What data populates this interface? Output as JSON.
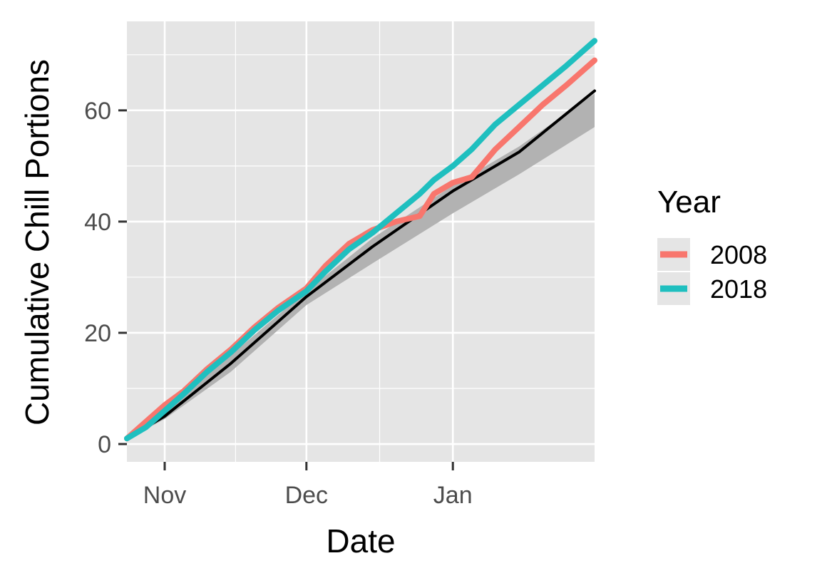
{
  "chart_data": {
    "type": "line",
    "title": "",
    "xlabel": "Date",
    "ylabel": "Cumulative Chill Portions",
    "x_ticks": [
      {
        "label": "Nov",
        "date": "2008-11-01"
      },
      {
        "label": "Dec",
        "date": "2008-12-01"
      },
      {
        "label": "Jan",
        "date": "2009-01-01"
      }
    ],
    "y_ticks": [
      0,
      20,
      40,
      60
    ],
    "xlim": [
      "2008-10-24",
      "2009-01-31"
    ],
    "ylim": [
      -3.2,
      76
    ],
    "grid": true,
    "legend": {
      "title": "Year",
      "placement": "right"
    },
    "colors": {
      "2008": "#F8766D",
      "2018": "#1FBFBF",
      "mean": "#000000",
      "band": "#B2B2B2",
      "panel": "#E5E5E5"
    },
    "band": {
      "x": [
        "2008-10-24",
        "2008-11-01",
        "2008-11-15",
        "2008-12-01",
        "2008-12-15",
        "2009-01-01",
        "2009-01-15",
        "2009-01-31"
      ],
      "lower": [
        0.8,
        4.5,
        13.0,
        25.0,
        32.5,
        41.5,
        48.5,
        57.0
      ],
      "upper": [
        1.6,
        6.0,
        16.0,
        27.5,
        37.0,
        46.5,
        53.5,
        63.0
      ]
    },
    "series": [
      {
        "name": "2008",
        "x": [
          "2008-10-24",
          "2008-10-28",
          "2008-11-01",
          "2008-11-05",
          "2008-11-10",
          "2008-11-15",
          "2008-11-20",
          "2008-11-25",
          "2008-12-01",
          "2008-12-05",
          "2008-12-10",
          "2008-12-15",
          "2008-12-20",
          "2008-12-25",
          "2008-12-28",
          "2009-01-01",
          "2009-01-05",
          "2009-01-10",
          "2009-01-15",
          "2009-01-20",
          "2009-01-25",
          "2009-01-31"
        ],
        "values": [
          1.0,
          4.0,
          7.0,
          9.5,
          13.5,
          17.0,
          21.0,
          24.5,
          28.0,
          32.0,
          36.0,
          38.5,
          40.0,
          41.0,
          45.0,
          47.0,
          48.0,
          53.0,
          57.0,
          61.0,
          64.5,
          69.0
        ]
      },
      {
        "name": "2018",
        "x": [
          "2008-10-24",
          "2008-10-28",
          "2008-11-01",
          "2008-11-05",
          "2008-11-10",
          "2008-11-15",
          "2008-11-20",
          "2008-11-25",
          "2008-12-01",
          "2008-12-05",
          "2008-12-10",
          "2008-12-15",
          "2008-12-20",
          "2008-12-25",
          "2008-12-28",
          "2009-01-01",
          "2009-01-05",
          "2009-01-10",
          "2009-01-15",
          "2009-01-20",
          "2009-01-25",
          "2009-01-31"
        ],
        "values": [
          1.0,
          3.0,
          6.0,
          9.0,
          13.0,
          16.5,
          20.5,
          24.0,
          27.5,
          31.0,
          35.0,
          38.0,
          41.5,
          45.0,
          47.5,
          50.0,
          53.0,
          57.5,
          61.0,
          64.5,
          68.0,
          72.5
        ]
      },
      {
        "name": "",
        "x": [
          "2008-10-24",
          "2008-11-01",
          "2008-11-15",
          "2008-12-01",
          "2008-12-15",
          "2009-01-01",
          "2009-01-15",
          "2009-01-31"
        ],
        "values": [
          1.0,
          5.0,
          14.5,
          26.5,
          35.5,
          45.5,
          52.5,
          63.5
        ]
      }
    ]
  }
}
